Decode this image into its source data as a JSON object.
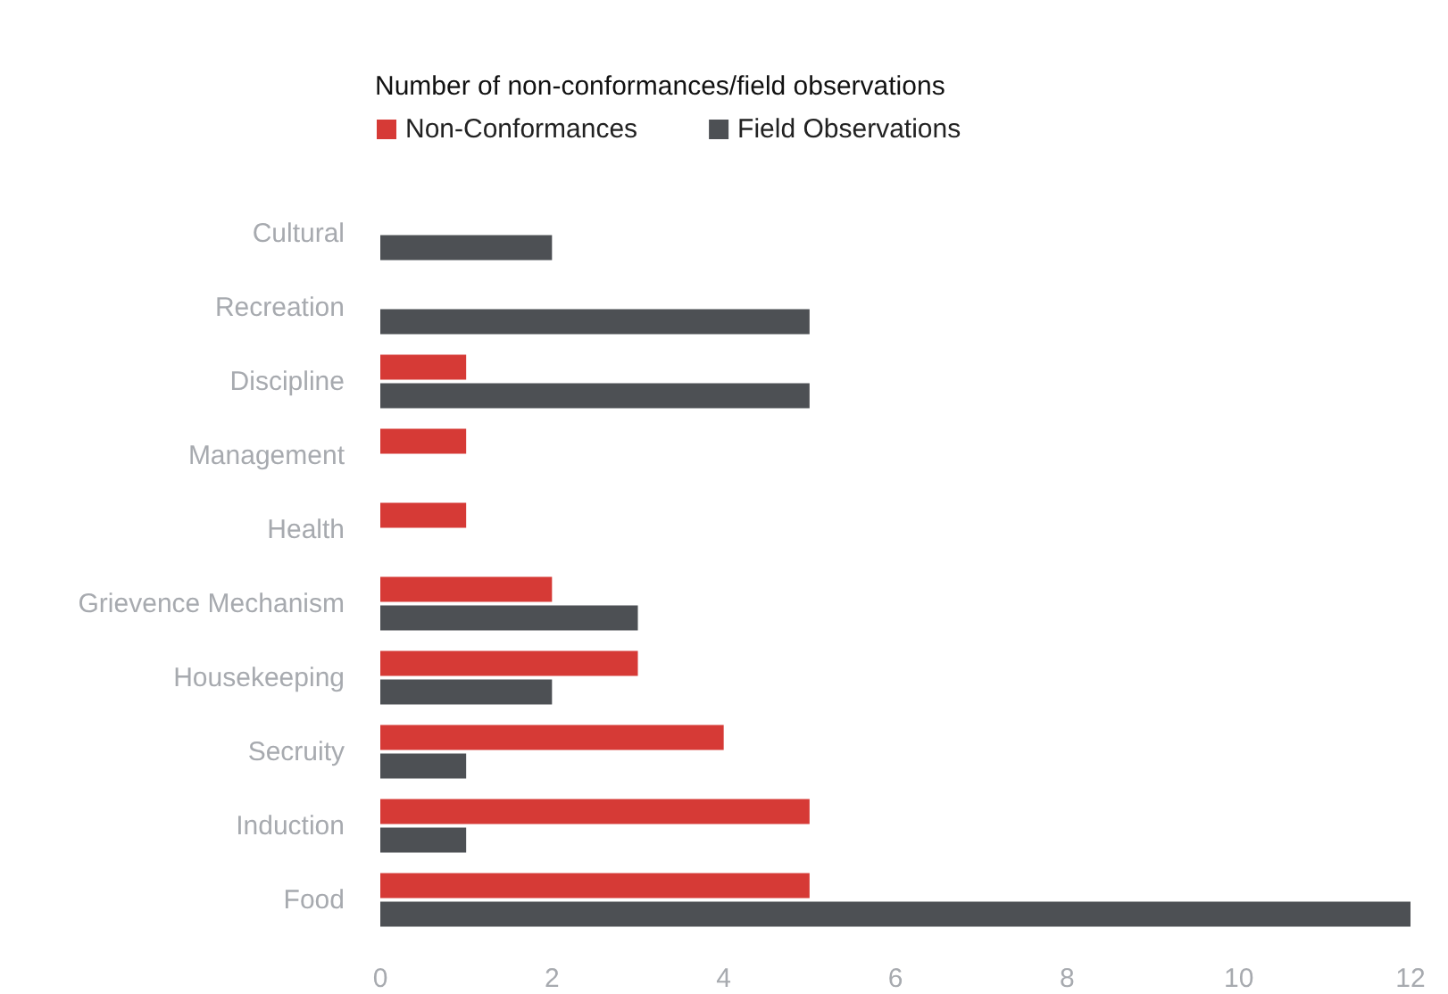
{
  "chart_data": {
    "type": "bar",
    "orientation": "horizontal",
    "title": "Number of non-conformances/field observations",
    "categories": [
      "Cultural",
      "Recreation",
      "Discipline",
      "Management",
      "Health",
      "Grievence Mechanism",
      "Housekeeping",
      "Secruity",
      "Induction",
      "Food"
    ],
    "series": [
      {
        "name": "Non-Conformances",
        "color": "#d63a36",
        "values": [
          null,
          null,
          1,
          1,
          1,
          2,
          3,
          4,
          5,
          5
        ]
      },
      {
        "name": "Field Observations",
        "color": "#4d5054",
        "values": [
          2,
          5,
          5,
          null,
          null,
          3,
          2,
          1,
          1,
          12
        ]
      }
    ],
    "xlim": [
      0,
      12
    ],
    "xticks": [
      0,
      2,
      4,
      6,
      8,
      10,
      12
    ],
    "grid": false,
    "legend": "top left"
  }
}
